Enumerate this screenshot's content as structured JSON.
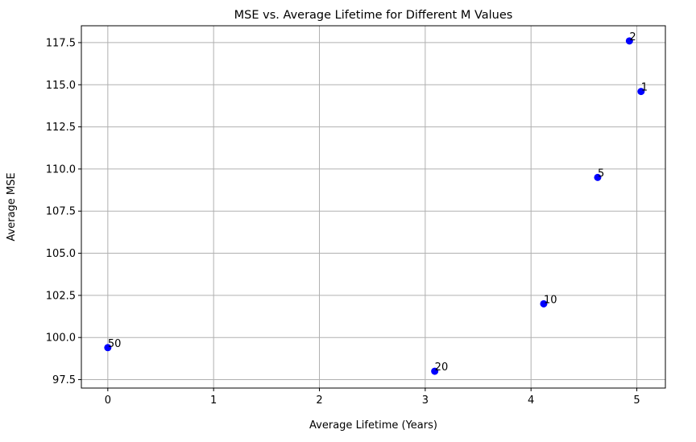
{
  "chart_data": {
    "type": "scatter",
    "title": "MSE vs. Average Lifetime for Different M Values",
    "xlabel": "Average Lifetime (Years)",
    "ylabel": "Average MSE",
    "xlim": [
      -0.25,
      5.27
    ],
    "ylim": [
      97.0,
      118.5
    ],
    "xticks": [
      0,
      1,
      2,
      3,
      4,
      5
    ],
    "xtick_labels": [
      "0",
      "1",
      "2",
      "3",
      "4",
      "5"
    ],
    "yticks": [
      97.5,
      100.0,
      102.5,
      105.0,
      107.5,
      110.0,
      112.5,
      115.0,
      117.5
    ],
    "ytick_labels": [
      "97.5",
      "100.0",
      "102.5",
      "105.0",
      "107.5",
      "110.0",
      "112.5",
      "115.0",
      "117.5"
    ],
    "grid": true,
    "marker_color": "#0000ff",
    "points": [
      {
        "x": 5.04,
        "y": 114.6,
        "label": "1"
      },
      {
        "x": 4.93,
        "y": 117.6,
        "label": "2"
      },
      {
        "x": 4.63,
        "y": 109.5,
        "label": "5"
      },
      {
        "x": 4.12,
        "y": 102.0,
        "label": "10"
      },
      {
        "x": 3.09,
        "y": 98.0,
        "label": "20"
      },
      {
        "x": 0.0,
        "y": 99.4,
        "label": "50"
      }
    ]
  }
}
